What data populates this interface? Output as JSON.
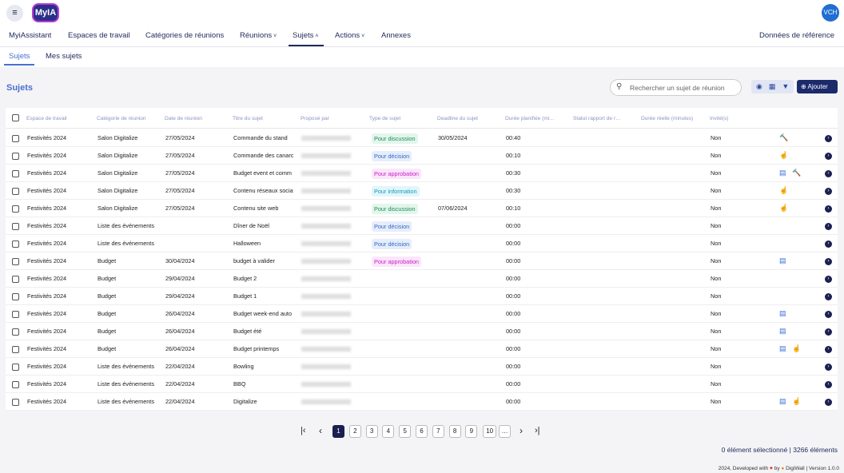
{
  "header": {
    "logo": "MyIA",
    "avatar": "VCH"
  },
  "nav": {
    "items": [
      "MyiAssistant",
      "Espaces de travail",
      "Catégories de réunions",
      "Réunions",
      "Sujets",
      "Actions",
      "Annexes"
    ],
    "right": "Données de référence"
  },
  "tabs": [
    "Sujets",
    "Mes sujets"
  ],
  "section": {
    "title": "Sujets",
    "search_placeholder": "Rechercher un sujet de réunion",
    "add_button": "Ajouter"
  },
  "table": {
    "columns": [
      "Espace de travail",
      "Catégorie de réunion",
      "Date de réunion",
      "Titre du sujet",
      "Proposé par",
      "Type de sujet",
      "Deadline du sujet",
      "Durée planifiée (mi…",
      "Statut rapport de r…",
      "Durée réelle (minutes)",
      "Invité(s)"
    ],
    "rows": [
      {
        "workspace": "Festivités 2024",
        "category": "Salon Digitalize",
        "date": "27/05/2024",
        "title": "Commande du stand",
        "type": {
          "label": "Pour discussion",
          "color": "#1e8a5a",
          "bg": "#e3f6ec"
        },
        "deadline": "30/05/2024",
        "planned": "00:40",
        "invited": "Non"
      },
      {
        "workspace": "Festivités 2024",
        "category": "Salon Digitalize",
        "date": "27/05/2024",
        "title": "Commande des canarc",
        "type": {
          "label": "Pour décision",
          "color": "#3465c9",
          "bg": "#e6eefb"
        },
        "deadline": null,
        "planned": "00:10",
        "invited": "Non"
      },
      {
        "workspace": "Festivités 2024",
        "category": "Salon Digitalize",
        "date": "27/05/2024",
        "title": "Budget event et comm",
        "type": {
          "label": "Pour approbation",
          "color": "#c81fc8",
          "bg": "#fbe6fb"
        },
        "deadline": null,
        "planned": "00:30",
        "invited": "Non"
      },
      {
        "workspace": "Festivités 2024",
        "category": "Salon Digitalize",
        "date": "27/05/2024",
        "title": "Contenu réseaux socia",
        "type": {
          "label": "Pour information",
          "color": "#1697b8",
          "bg": "#e2f6fb"
        },
        "deadline": null,
        "planned": "00:30",
        "invited": "Non"
      },
      {
        "workspace": "Festivités 2024",
        "category": "Salon Digitalize",
        "date": "27/05/2024",
        "title": "Contenu site web",
        "type": {
          "label": "Pour discussion",
          "color": "#1e8a5a",
          "bg": "#e3f6ec"
        },
        "deadline": "07/06/2024",
        "planned": "00:10",
        "invited": "Non"
      },
      {
        "workspace": "Festivités 2024",
        "category": "Liste des événements",
        "date": null,
        "title": "Dîner de Noël",
        "type": {
          "label": "Pour décision",
          "color": "#3465c9",
          "bg": "#e6eefb"
        },
        "deadline": null,
        "planned": "00:00",
        "invited": "Non"
      },
      {
        "workspace": "Festivités 2024",
        "category": "Liste des événements",
        "date": null,
        "title": "Halloween",
        "type": {
          "label": "Pour décision",
          "color": "#3465c9",
          "bg": "#e6eefb"
        },
        "deadline": null,
        "planned": "00:00",
        "invited": "Non"
      },
      {
        "workspace": "Festivités 2024",
        "category": "Budget",
        "date": "30/04/2024",
        "title": "budget à valider",
        "type": {
          "label": "Pour approbation",
          "color": "#c81fc8",
          "bg": "#fbe6fb"
        },
        "deadline": null,
        "planned": "00:00",
        "invited": "Non"
      },
      {
        "workspace": "Festivités 2024",
        "category": "Budget",
        "date": "29/04/2024",
        "title": "Budget 2",
        "type": null,
        "deadline": null,
        "planned": "00:00",
        "invited": "Non"
      },
      {
        "workspace": "Festivités 2024",
        "category": "Budget",
        "date": "29/04/2024",
        "title": "Budget 1",
        "type": null,
        "deadline": null,
        "planned": "00:00",
        "invited": "Non"
      },
      {
        "workspace": "Festivités 2024",
        "category": "Budget",
        "date": "26/04/2024",
        "title": "Budget week-end auto",
        "type": null,
        "deadline": null,
        "planned": "00:00",
        "invited": "Non"
      },
      {
        "workspace": "Festivités 2024",
        "category": "Budget",
        "date": "26/04/2024",
        "title": "Budget été",
        "type": null,
        "deadline": null,
        "planned": "00:00",
        "invited": "Non"
      },
      {
        "workspace": "Festivités 2024",
        "category": "Budget",
        "date": "26/04/2024",
        "title": "Budget printemps",
        "type": null,
        "deadline": null,
        "planned": "00:00",
        "invited": "Non"
      },
      {
        "workspace": "Festivités 2024",
        "category": "Liste des événements",
        "date": "22/04/2024",
        "title": "Bowling",
        "type": null,
        "deadline": null,
        "planned": "00:00",
        "invited": "Non"
      },
      {
        "workspace": "Festivités 2024",
        "category": "Liste des événements",
        "date": "22/04/2024",
        "title": "BBQ",
        "type": null,
        "deadline": null,
        "planned": "00:00",
        "invited": "Non"
      },
      {
        "workspace": "Festivités 2024",
        "category": "Liste des événements",
        "date": "22/04/2024",
        "title": "Digitalize",
        "type": null,
        "deadline": null,
        "planned": "00:00",
        "invited": "Non"
      }
    ]
  },
  "pagination": {
    "pages": [
      1,
      2,
      3,
      4,
      5,
      6,
      7,
      8,
      9,
      10
    ],
    "more": "…"
  },
  "footer": {
    "selection": "0 élément sélectionné | 3266 éléments",
    "credit_prefix": "2024, Developed with",
    "credit_by": "by",
    "credit_suffix": "DigiWall | Version 1.0.0"
  }
}
